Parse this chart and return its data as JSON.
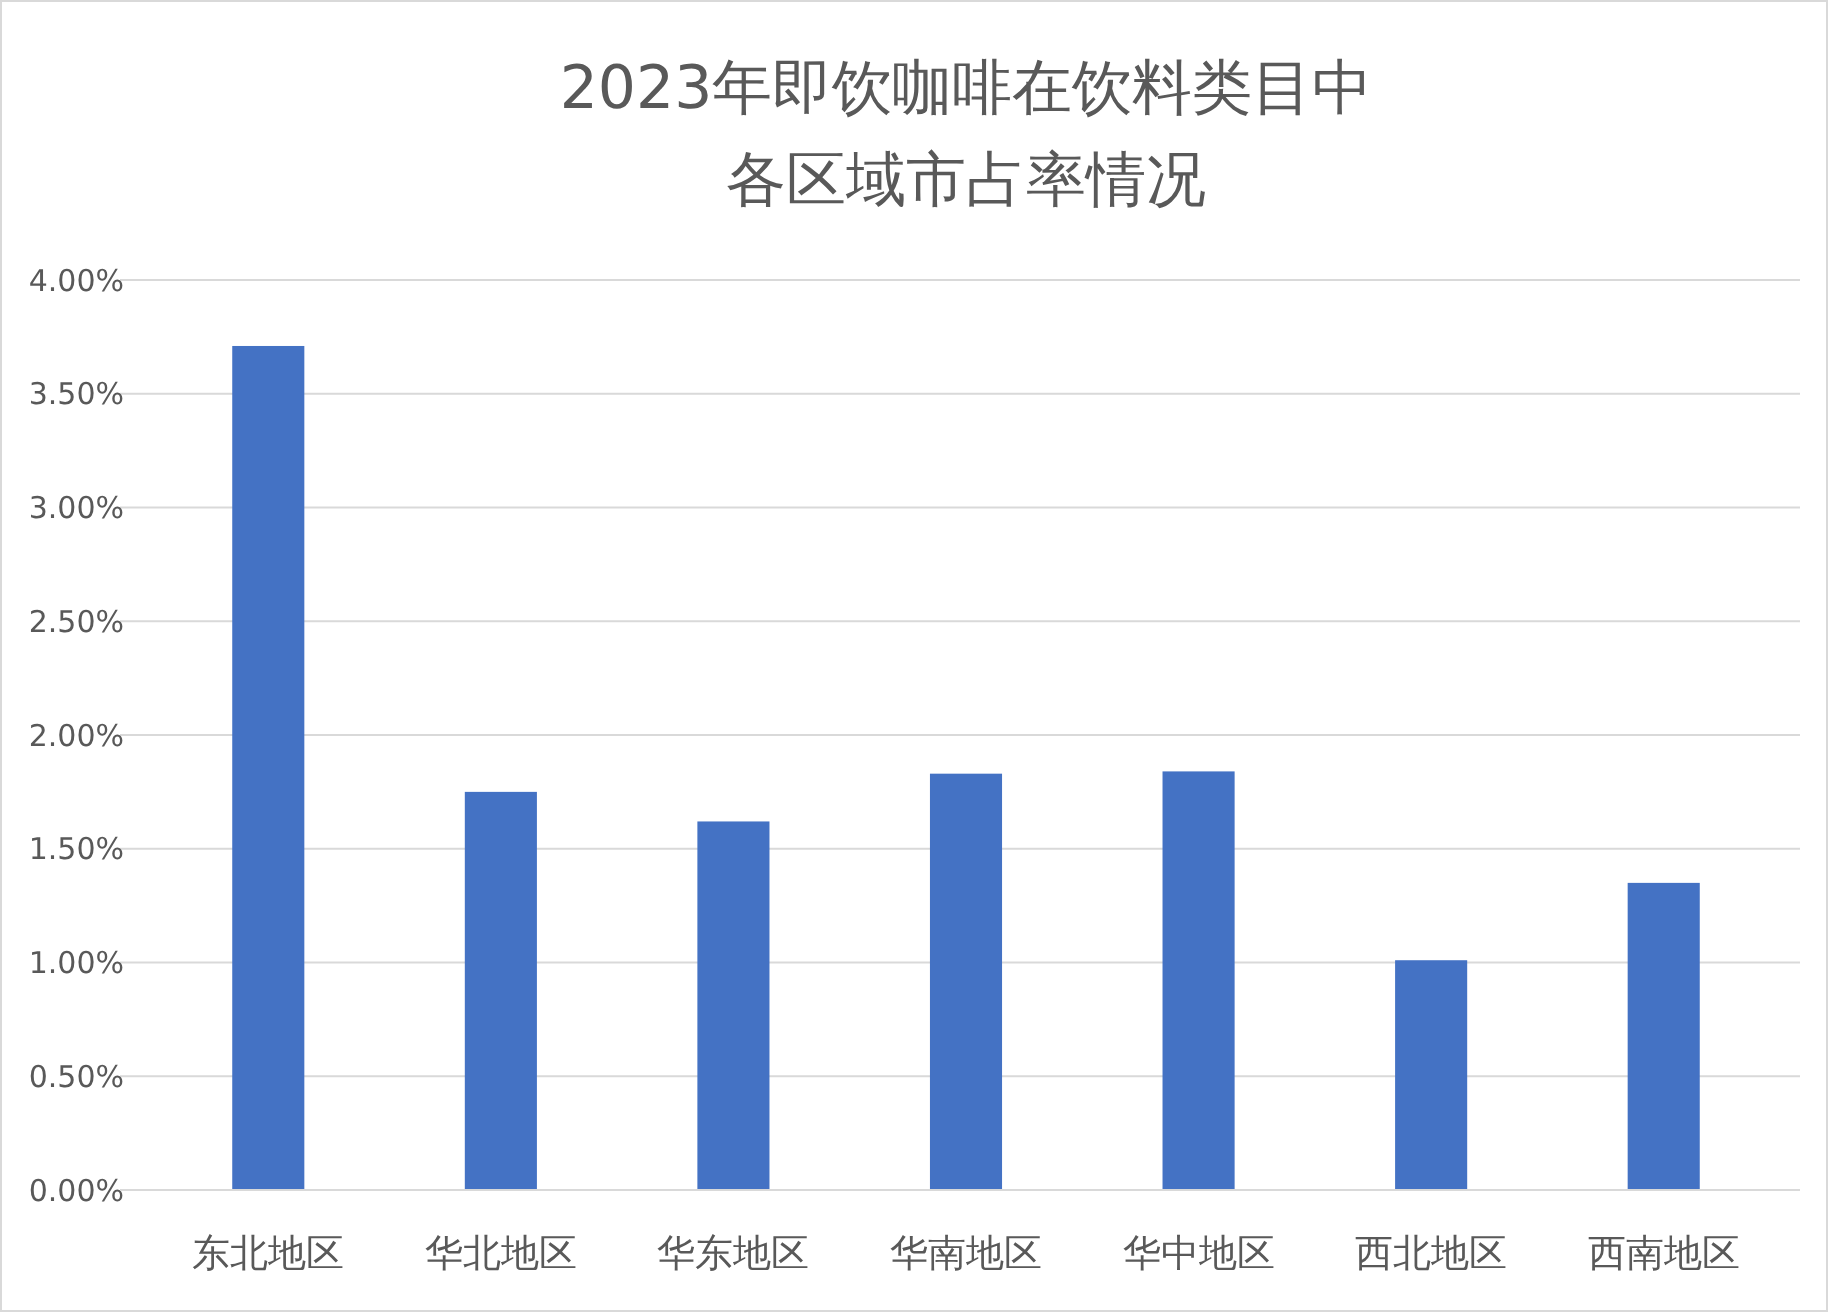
{
  "chart_data": {
    "type": "bar",
    "title": "2023年即饮咖啡在饮料类目中各区域市占率情况",
    "categories": [
      "东北地区",
      "华北地区",
      "华东地区",
      "华南地区",
      "华中地区",
      "西北地区",
      "西南地区"
    ],
    "values": [
      3.71,
      1.75,
      1.62,
      1.83,
      1.84,
      1.01,
      1.35
    ],
    "color": "#4472c4",
    "ylim": [
      0,
      4
    ],
    "yticks": [
      {
        "value": 0,
        "label": "0.00%"
      },
      {
        "value": 0.5,
        "label": "0.50%"
      },
      {
        "value": 1,
        "label": "1.00%"
      },
      {
        "value": 1.5,
        "label": "1.50%"
      },
      {
        "value": 2,
        "label": "2.00%"
      },
      {
        "value": 2.5,
        "label": "2.50%"
      },
      {
        "value": 3,
        "label": "3.00%"
      },
      {
        "value": 3.5,
        "label": "3.50%"
      },
      {
        "value": 4,
        "label": "4.00%"
      }
    ],
    "grid": true
  }
}
